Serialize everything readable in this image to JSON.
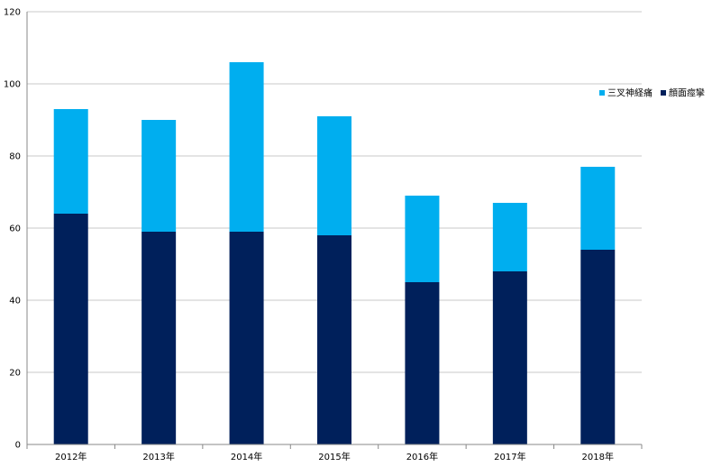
{
  "chart_data": {
    "type": "bar",
    "stacked": true,
    "title": "",
    "xlabel": "",
    "ylabel": "",
    "categories": [
      "2012年",
      "2013年",
      "2014年",
      "2015年",
      "2016年",
      "2017年",
      "2018年"
    ],
    "series": [
      {
        "name": "顔面痙攣",
        "color": "#00205b",
        "values": [
          64,
          59,
          59,
          58,
          45,
          48,
          54
        ]
      },
      {
        "name": "三叉神経痛",
        "color": "#00aeef",
        "values": [
          29,
          31,
          47,
          33,
          24,
          19,
          23
        ]
      }
    ],
    "legend_order": [
      "三叉神経痛",
      "顔面痙攣"
    ],
    "ylim": [
      0,
      120
    ],
    "yticks": [
      0,
      20,
      40,
      60,
      80,
      100,
      120
    ],
    "grid": true,
    "legend_position": "right",
    "colors": {
      "grid": "#c8c8c8",
      "axis": "#888888"
    }
  }
}
